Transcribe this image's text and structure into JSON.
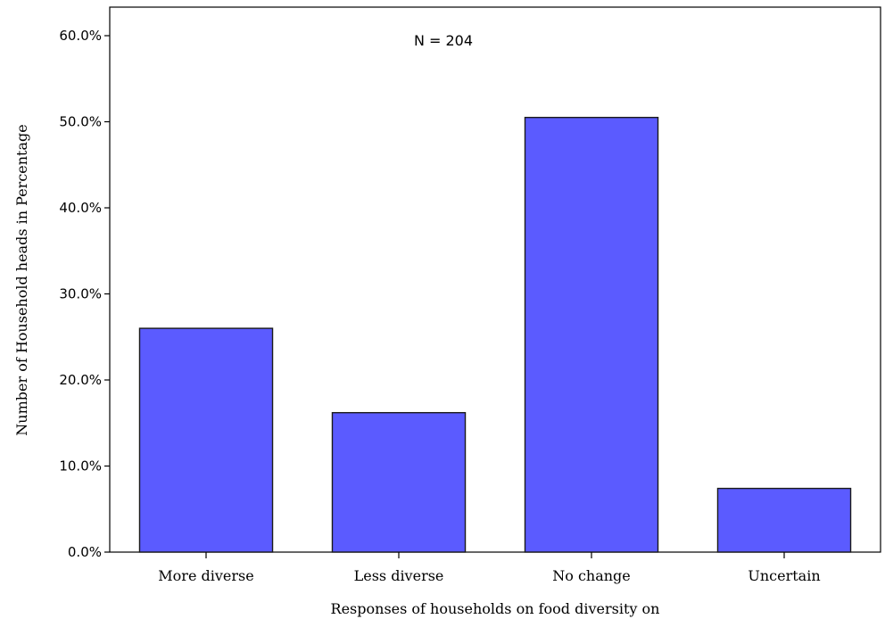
{
  "chart_data": {
    "type": "bar",
    "categories": [
      "More diverse",
      "Less diverse",
      "No change",
      "Uncertain"
    ],
    "values": [
      26.0,
      16.2,
      50.5,
      7.4
    ],
    "title": "",
    "xlabel": "Responses of households on  food diversity on",
    "ylabel": "Number of Household heads in Percentage",
    "ylim": [
      0,
      60
    ],
    "yticks": [
      0,
      10,
      20,
      30,
      40,
      50,
      60
    ],
    "ytick_labels": [
      "0.0%",
      "10.0%",
      "20.0%",
      "30.0%",
      "40.0%",
      "50.0%",
      "60.0%"
    ],
    "annotation": "N = 204",
    "bar_color": "#5b5bff",
    "bar_edge_color": "#1a1a1a",
    "grid": false,
    "legend": "none"
  }
}
